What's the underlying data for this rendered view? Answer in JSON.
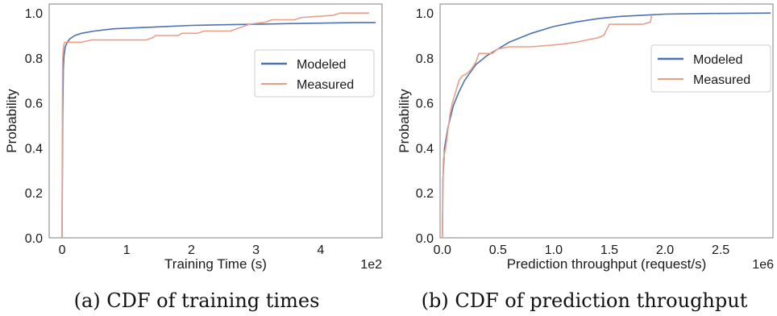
{
  "figure": {
    "captions": [
      "(a) CDF of training times",
      "(b) CDF of prediction throughput"
    ]
  },
  "colors": {
    "modeled": "#4c72b0",
    "measured": "#e8a08a",
    "axes": "#7f7f7f",
    "text": "#1a1a1a"
  },
  "chart_data": [
    {
      "type": "line",
      "title": "",
      "xlabel": "Training Time (s)",
      "ylabel": "Probability",
      "x_offset_text": "1e2",
      "xlim": [
        -0.2,
        4.95
      ],
      "ylim": [
        0,
        1.04
      ],
      "x_ticks": [
        0,
        1,
        2,
        3,
        4
      ],
      "x_tick_labels": [
        "0",
        "1",
        "2",
        "3",
        "4"
      ],
      "y_ticks": [
        0,
        0.2,
        0.4,
        0.6,
        0.8,
        1.0
      ],
      "y_tick_labels": [
        "0.0",
        "0.2",
        "0.4",
        "0.6",
        "0.8",
        "1.0"
      ],
      "legend_position": "upper-right",
      "grid": false,
      "series": [
        {
          "name": "Modeled",
          "x": [
            0.0,
            0.01,
            0.02,
            0.03,
            0.05,
            0.08,
            0.12,
            0.2,
            0.3,
            0.5,
            0.8,
            1.2,
            1.6,
            2.0,
            2.5,
            3.0,
            3.5,
            4.0,
            4.5,
            4.85
          ],
          "y": [
            0.0,
            0.55,
            0.75,
            0.81,
            0.85,
            0.87,
            0.885,
            0.9,
            0.91,
            0.92,
            0.93,
            0.935,
            0.94,
            0.945,
            0.948,
            0.95,
            0.953,
            0.955,
            0.957,
            0.958
          ]
        },
        {
          "name": "Measured",
          "x": [
            0.0,
            0.005,
            0.01,
            0.02,
            0.03,
            0.04,
            0.05,
            0.3,
            0.45,
            0.55,
            1.3,
            1.4,
            1.45,
            1.8,
            1.85,
            2.1,
            2.2,
            2.6,
            2.7,
            2.8,
            2.9,
            3.15,
            3.25,
            3.6,
            3.7,
            4.2,
            4.3,
            4.75
          ],
          "y": [
            0.0,
            0.6,
            0.8,
            0.84,
            0.86,
            0.87,
            0.87,
            0.87,
            0.88,
            0.88,
            0.88,
            0.89,
            0.9,
            0.9,
            0.91,
            0.91,
            0.92,
            0.92,
            0.93,
            0.94,
            0.95,
            0.96,
            0.97,
            0.97,
            0.98,
            0.99,
            1.0,
            1.0
          ]
        }
      ]
    },
    {
      "type": "line",
      "title": "",
      "xlabel": "Prediction throughput (request/s)",
      "ylabel": "Probability",
      "x_offset_text": "1e6",
      "xlim": [
        -0.02,
        2.97
      ],
      "ylim": [
        0,
        1.04
      ],
      "x_ticks": [
        0,
        0.5,
        1.0,
        1.5,
        2.0,
        2.5
      ],
      "x_tick_labels": [
        "0.0",
        "0.5",
        "1.0",
        "1.5",
        "2.0",
        "2.5"
      ],
      "y_ticks": [
        0,
        0.2,
        0.4,
        0.6,
        0.8,
        1.0
      ],
      "y_tick_labels": [
        "0.0",
        "0.2",
        "0.4",
        "0.6",
        "0.8",
        "1.0"
      ],
      "legend_position": "upper-right",
      "grid": false,
      "series": [
        {
          "name": "Modeled",
          "x": [
            0.0,
            0.005,
            0.02,
            0.05,
            0.1,
            0.15,
            0.2,
            0.3,
            0.4,
            0.5,
            0.6,
            0.8,
            1.0,
            1.2,
            1.4,
            1.6,
            1.8,
            2.0,
            2.4,
            2.95
          ],
          "y": [
            0.0,
            0.26,
            0.4,
            0.49,
            0.59,
            0.65,
            0.7,
            0.77,
            0.81,
            0.84,
            0.87,
            0.91,
            0.94,
            0.96,
            0.975,
            0.985,
            0.99,
            0.995,
            0.998,
            1.0
          ]
        },
        {
          "name": "Measured",
          "x": [
            0.0,
            0.01,
            0.03,
            0.05,
            0.07,
            0.09,
            0.12,
            0.15,
            0.18,
            0.22,
            0.26,
            0.3,
            0.33,
            0.45,
            0.5,
            0.6,
            0.8,
            1.05,
            1.2,
            1.3,
            1.4,
            1.45,
            1.5,
            1.8,
            1.87,
            1.88
          ],
          "y": [
            0.0,
            0.35,
            0.4,
            0.48,
            0.55,
            0.6,
            0.65,
            0.7,
            0.72,
            0.73,
            0.75,
            0.78,
            0.82,
            0.82,
            0.84,
            0.85,
            0.85,
            0.86,
            0.87,
            0.88,
            0.89,
            0.9,
            0.95,
            0.95,
            0.96,
            0.99
          ]
        }
      ]
    }
  ]
}
